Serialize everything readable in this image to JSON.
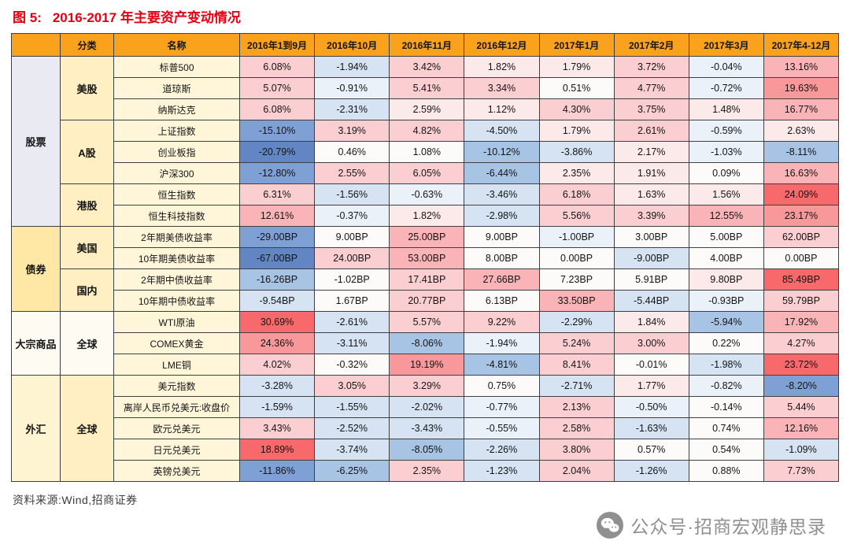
{
  "title": {
    "prefix": "图 5:",
    "text": "2016-2017 年主要资产变动情况"
  },
  "colors": {
    "title": "#E60012",
    "header_bg": "#FAA21E",
    "border": "#3F3F3F",
    "name_col_bg": "#FFF6DA",
    "watermark": "#8F8F8F"
  },
  "palette": {
    "r": "#F8696B",
    "p3": "#F9989B",
    "p2": "#FAB4B7",
    "p1": "#FBCFD1",
    "p0": "#FCE9EA",
    "n": "#FCFBFA",
    "b0": "#EAF1F9",
    "b1": "#D5E3F3",
    "b2": "#A8C4E5",
    "b3": "#7FA0D4",
    "b4": "#6286C3"
  },
  "chart_data": {
    "type": "heatmap",
    "title": "2016-2017 年主要资产变动情况",
    "corner_headers": [
      "",
      "分类",
      "名称"
    ],
    "columns": [
      "2016年1到9月",
      "2016年10月",
      "2016年11月",
      "2016年12月",
      "2017年1月",
      "2017年2月",
      "2017年3月",
      "2017年4-12月"
    ],
    "groups": [
      {
        "label": "股票",
        "bg": "#EAEAF3",
        "subgroups": [
          {
            "label": "美股",
            "bg": "#FFEFC2",
            "rows": [
              {
                "name": "标普500",
                "unit": "%",
                "values": [
                  6.08,
                  -1.94,
                  3.42,
                  1.82,
                  1.79,
                  3.72,
                  -0.04,
                  13.16
                ],
                "colors": [
                  "p1",
                  "b1",
                  "p1",
                  "p0",
                  "p0",
                  "p1",
                  "b0",
                  "p2"
                ]
              },
              {
                "name": "道琼斯",
                "unit": "%",
                "values": [
                  5.07,
                  -0.91,
                  5.41,
                  3.34,
                  0.51,
                  4.77,
                  -0.72,
                  19.63
                ],
                "colors": [
                  "p1",
                  "b0",
                  "p1",
                  "p1",
                  "n",
                  "p1",
                  "b0",
                  "p3"
                ]
              },
              {
                "name": "纳斯达克",
                "unit": "%",
                "values": [
                  6.08,
                  -2.31,
                  2.59,
                  1.12,
                  4.3,
                  3.75,
                  1.48,
                  16.77
                ],
                "colors": [
                  "p1",
                  "b1",
                  "p0",
                  "p0",
                  "p1",
                  "p1",
                  "p0",
                  "p2"
                ]
              }
            ]
          },
          {
            "label": "A股",
            "bg": "#FFEFC2",
            "rows": [
              {
                "name": "上证指数",
                "unit": "%",
                "values": [
                  -15.1,
                  3.19,
                  4.82,
                  -4.5,
                  1.79,
                  2.61,
                  -0.59,
                  2.63
                ],
                "colors": [
                  "b3",
                  "p1",
                  "p1",
                  "b1",
                  "p0",
                  "p1",
                  "b0",
                  "p0"
                ]
              },
              {
                "name": "创业板指",
                "unit": "%",
                "values": [
                  -20.79,
                  0.46,
                  1.08,
                  -10.12,
                  -3.86,
                  2.17,
                  -1.03,
                  -8.11
                ],
                "colors": [
                  "b4",
                  "n",
                  "n",
                  "b2",
                  "b1",
                  "p0",
                  "b0",
                  "b2"
                ]
              },
              {
                "name": "沪深300",
                "unit": "%",
                "values": [
                  -12.8,
                  2.55,
                  6.05,
                  -6.44,
                  2.35,
                  1.91,
                  0.09,
                  16.63
                ],
                "colors": [
                  "b3",
                  "p1",
                  "p1",
                  "b2",
                  "p0",
                  "p0",
                  "n",
                  "p2"
                ]
              }
            ]
          },
          {
            "label": "港股",
            "bg": "#FFEFC2",
            "rows": [
              {
                "name": "恒生指数",
                "unit": "%",
                "values": [
                  6.31,
                  -1.56,
                  -0.63,
                  -3.46,
                  6.18,
                  1.63,
                  1.56,
                  24.09
                ],
                "colors": [
                  "p1",
                  "b1",
                  "b0",
                  "b1",
                  "p1",
                  "p0",
                  "p0",
                  "r"
                ]
              },
              {
                "name": "恒生科技指数",
                "unit": "%",
                "values": [
                  12.61,
                  -0.37,
                  1.82,
                  -2.98,
                  5.56,
                  3.39,
                  12.55,
                  23.17
                ],
                "colors": [
                  "p2",
                  "b0",
                  "p0",
                  "b1",
                  "p1",
                  "p1",
                  "p2",
                  "p3"
                ]
              }
            ]
          }
        ]
      },
      {
        "label": "债券",
        "bg": "#FFE8A6",
        "subgroups": [
          {
            "label": "美国",
            "bg": "#FFEFC2",
            "rows": [
              {
                "name": "2年期美债收益率",
                "unit": "BP",
                "values": [
                  -29.0,
                  9.0,
                  25.0,
                  9.0,
                  -1.0,
                  3.0,
                  5.0,
                  62.0
                ],
                "colors": [
                  "b3",
                  "n",
                  "p2",
                  "n",
                  "b0",
                  "n",
                  "n",
                  "p1"
                ]
              },
              {
                "name": "10年期美债收益率",
                "unit": "BP",
                "values": [
                  -67.0,
                  24.0,
                  53.0,
                  8.0,
                  0.0,
                  -9.0,
                  4.0,
                  0.0
                ],
                "colors": [
                  "b4",
                  "p1",
                  "p2",
                  "n",
                  "n",
                  "b1",
                  "n",
                  "n"
                ]
              }
            ]
          },
          {
            "label": "国内",
            "bg": "#FFEFC2",
            "rows": [
              {
                "name": "2年期中债收益率",
                "unit": "BP",
                "values": [
                  -16.26,
                  -1.02,
                  17.41,
                  27.66,
                  7.23,
                  5.91,
                  9.8,
                  85.49
                ],
                "colors": [
                  "b2",
                  "n",
                  "p1",
                  "p2",
                  "n",
                  "n",
                  "p0",
                  "r"
                ]
              },
              {
                "name": "10年期中债收益率",
                "unit": "BP",
                "values": [
                  -9.54,
                  1.67,
                  20.77,
                  6.13,
                  33.5,
                  -5.44,
                  -0.93,
                  59.79
                ],
                "colors": [
                  "b1",
                  "n",
                  "p1",
                  "n",
                  "p2",
                  "b1",
                  "b0",
                  "p1"
                ]
              }
            ]
          }
        ]
      },
      {
        "label": "大宗商品",
        "bg": "#FDFBF2",
        "subgroups": [
          {
            "label": "全球",
            "bg": "#FDFBF2",
            "rows": [
              {
                "name": "WTI原油",
                "unit": "%",
                "values": [
                  30.69,
                  -2.61,
                  5.57,
                  9.22,
                  -2.29,
                  1.84,
                  -5.94,
                  17.92
                ],
                "colors": [
                  "r",
                  "b1",
                  "p1",
                  "p1",
                  "b1",
                  "p0",
                  "b2",
                  "p2"
                ]
              },
              {
                "name": "COMEX黄金",
                "unit": "%",
                "values": [
                  24.36,
                  -3.11,
                  -8.06,
                  -1.94,
                  5.24,
                  3.0,
                  0.22,
                  4.27
                ],
                "colors": [
                  "p3",
                  "b1",
                  "b2",
                  "b0",
                  "p1",
                  "p1",
                  "n",
                  "p1"
                ]
              },
              {
                "name": "LME铜",
                "unit": "%",
                "values": [
                  4.02,
                  -0.32,
                  19.19,
                  -4.81,
                  8.41,
                  -0.01,
                  -1.98,
                  23.72
                ],
                "colors": [
                  "p1",
                  "n",
                  "p3",
                  "b2",
                  "p1",
                  "n",
                  "b1",
                  "r"
                ]
              }
            ]
          }
        ]
      },
      {
        "label": "外汇",
        "bg": "#FFF4D1",
        "subgroups": [
          {
            "label": "全球",
            "bg": "#FFEFC2",
            "rows": [
              {
                "name": "美元指数",
                "unit": "%",
                "values": [
                  -3.28,
                  3.05,
                  3.29,
                  0.75,
                  -2.71,
                  1.77,
                  -0.82,
                  -8.2
                ],
                "colors": [
                  "b1",
                  "p1",
                  "p1",
                  "n",
                  "b1",
                  "p0",
                  "b0",
                  "b3"
                ]
              },
              {
                "name": "离岸人民币兑美元:收盘价",
                "unit": "%",
                "values": [
                  -1.59,
                  -1.55,
                  -2.02,
                  -0.77,
                  2.13,
                  -0.5,
                  -0.14,
                  5.44
                ],
                "colors": [
                  "b1",
                  "b1",
                  "b1",
                  "b0",
                  "p1",
                  "b0",
                  "n",
                  "p1"
                ]
              },
              {
                "name": "欧元兑美元",
                "unit": "%",
                "values": [
                  3.43,
                  -2.52,
                  -3.43,
                  -0.55,
                  2.58,
                  -1.63,
                  0.74,
                  12.16
                ],
                "colors": [
                  "p1",
                  "b1",
                  "b1",
                  "b0",
                  "p1",
                  "b1",
                  "n",
                  "p2"
                ]
              },
              {
                "name": "日元兑美元",
                "unit": "%",
                "values": [
                  18.89,
                  -3.74,
                  -8.05,
                  -2.26,
                  3.8,
                  0.57,
                  0.54,
                  -1.09
                ],
                "colors": [
                  "r",
                  "b1",
                  "b2",
                  "b1",
                  "p1",
                  "n",
                  "n",
                  "b1"
                ]
              },
              {
                "name": "英镑兑美元",
                "unit": "%",
                "values": [
                  -11.86,
                  -6.25,
                  2.35,
                  -1.23,
                  2.04,
                  -1.26,
                  0.88,
                  7.73
                ],
                "colors": [
                  "b3",
                  "b2",
                  "p1",
                  "b1",
                  "p1",
                  "b1",
                  "n",
                  "p1"
                ]
              }
            ]
          }
        ]
      }
    ]
  },
  "footer": {
    "source": "资料来源:Wind,招商证券"
  },
  "watermark": {
    "icon": "wechat-icon",
    "text": "公众号·招商宏观静思录"
  }
}
